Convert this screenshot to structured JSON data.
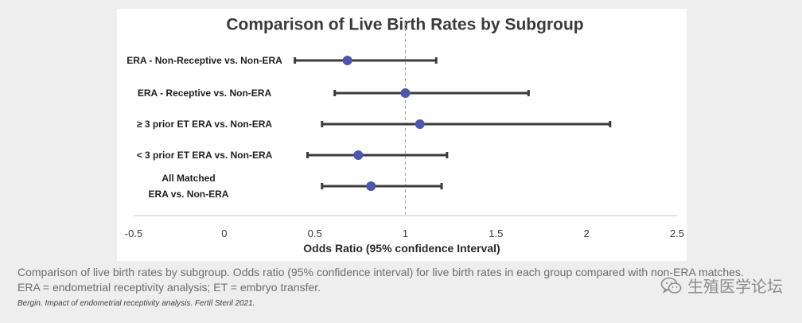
{
  "chart_data": {
    "type": "forest",
    "title": "Comparison of Live Birth Rates by Subgroup",
    "xlabel": "Odds Ratio (95% confidence Interval)",
    "xlim": [
      -0.5,
      2.5
    ],
    "xticks": [
      "-0.5",
      "0",
      "0.5",
      "1",
      "1.5",
      "2",
      "2.5"
    ],
    "reference_line": 1,
    "rows": [
      {
        "label": [
          "ERA - Non-Receptive vs. Non-ERA"
        ],
        "or": 0.68,
        "ci": [
          0.39,
          1.17
        ]
      },
      {
        "label": [
          "ERA - Receptive  vs. Non-ERA"
        ],
        "or": 1.0,
        "ci": [
          0.61,
          1.68
        ]
      },
      {
        "label": [
          "≥ 3 prior ET ERA vs. Non-ERA"
        ],
        "or": 1.08,
        "ci": [
          0.54,
          2.13
        ]
      },
      {
        "label": [
          "< 3 prior ET ERA vs. Non-ERA"
        ],
        "or": 0.74,
        "ci": [
          0.46,
          1.23
        ]
      },
      {
        "label": [
          "All Matched",
          "ERA vs. Non-ERA"
        ],
        "or": 0.81,
        "ci": [
          0.54,
          1.2
        ]
      }
    ],
    "colors": {
      "point": "#4a56b0",
      "whisker": "#3b3b3b",
      "reference": "#a9a9a9",
      "axis": "#c8c8c8"
    }
  },
  "caption": {
    "line1": "Comparison of live birth rates by subgroup. Odds ratio (95% confidence interval) for live birth rates in each group compared with non-ERA matches.",
    "line2": "ERA = endometrial receptivity analysis; ET = embryo transfer."
  },
  "citation": "Bergin. Impact of endometrial receptivity analysis. Fertil Steril 2021.",
  "watermark": {
    "icon": "wechat-icon",
    "text": "生殖医学论坛"
  }
}
